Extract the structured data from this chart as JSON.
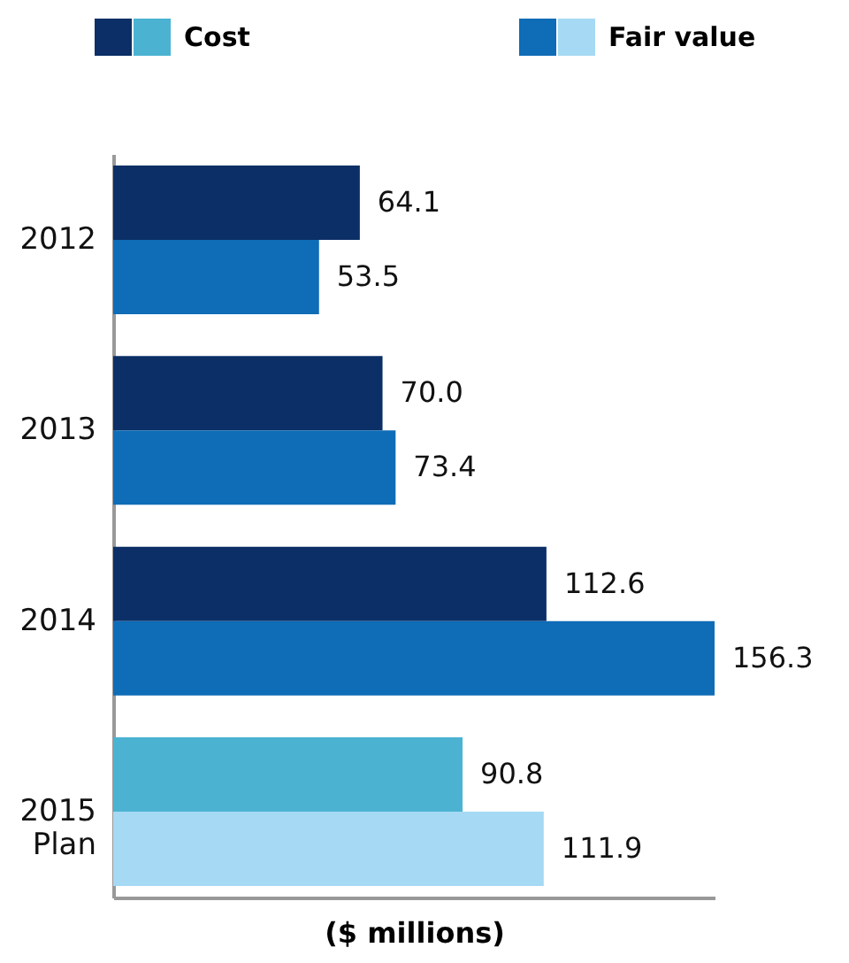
{
  "chart_data": {
    "type": "bar",
    "orientation": "horizontal",
    "xlabel": "($ millions)",
    "categories": [
      "2012",
      "2013",
      "2014",
      "2015 Plan"
    ],
    "legend": "top",
    "grid": false,
    "series": [
      {
        "name": "Cost",
        "colors": [
          "#0b2f66",
          "#0b2f66",
          "#0b2f66",
          "#4bb3d1"
        ],
        "values": [
          64.1,
          70.0,
          112.6,
          90.8
        ],
        "value_labels": [
          "64.1",
          "70.0",
          "112.6",
          "90.8"
        ]
      },
      {
        "name": "Fair value",
        "colors": [
          "#0f6cb6",
          "#0f6cb6",
          "#0f6cb6",
          "#a6d9f3"
        ],
        "values": [
          53.5,
          73.4,
          156.3,
          111.9
        ],
        "value_labels": [
          "53.5",
          "73.4",
          "156.3",
          "111.9"
        ]
      }
    ]
  }
}
